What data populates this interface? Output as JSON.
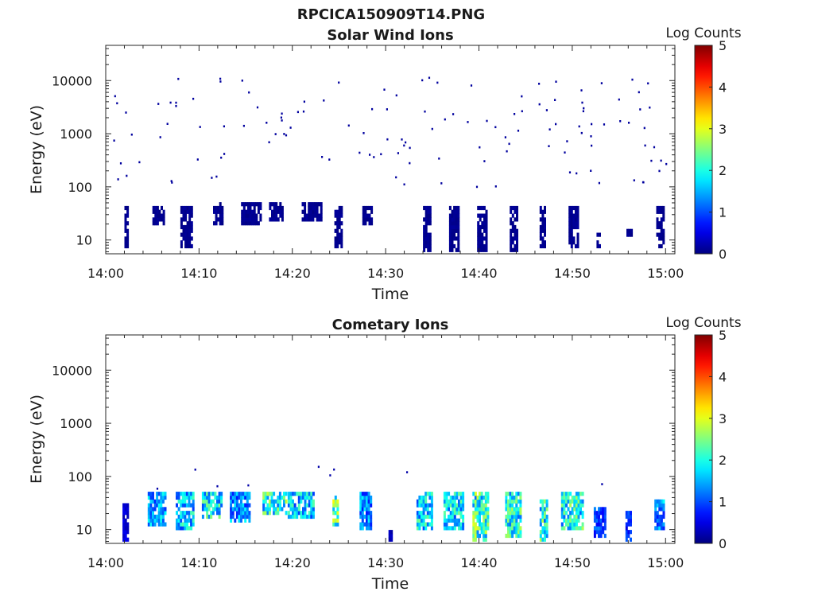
{
  "figure": {
    "suptitle": "RPCICA150909T14.PNG"
  },
  "chart_data": [
    {
      "type": "heatmap",
      "title": "Solar Wind Ions",
      "xlabel": "Time",
      "ylabel": "Energy (eV)",
      "x_ticks": [
        "14:00",
        "14:10",
        "14:20",
        "14:30",
        "14:40",
        "14:50",
        "15:00"
      ],
      "x_range_minutes": [
        0,
        61
      ],
      "y_scale": "log",
      "y_ticks": [
        "10",
        "100",
        "1000",
        "10000"
      ],
      "ylim": [
        5.5,
        46000
      ],
      "colorbar": {
        "label": "Log Counts",
        "ticks": [
          "0",
          "1",
          "2",
          "3",
          "4",
          "5"
        ],
        "range": [
          0,
          5
        ],
        "colormap": "jet"
      },
      "bands": [
        {
          "t0": 2.0,
          "t1": 2.4,
          "e0": 7.5,
          "e1": 40,
          "level": 0.1
        },
        {
          "t0": 5.0,
          "t1": 6.2,
          "e0": 22,
          "e1": 40,
          "level": 0.1
        },
        {
          "t0": 8.0,
          "t1": 9.2,
          "e0": 7.5,
          "e1": 40,
          "level": 0.1
        },
        {
          "t0": 11.5,
          "t1": 12.5,
          "e0": 22,
          "e1": 45,
          "level": 0.1
        },
        {
          "t0": 14.5,
          "t1": 16.5,
          "e0": 22,
          "e1": 45,
          "level": 0.1
        },
        {
          "t0": 17.5,
          "t1": 19.0,
          "e0": 25,
          "e1": 50,
          "level": 0.1
        },
        {
          "t0": 21.0,
          "t1": 23.0,
          "e0": 25,
          "e1": 45,
          "level": 0.1
        },
        {
          "t0": 24.5,
          "t1": 25.3,
          "e0": 8,
          "e1": 40,
          "level": 0.1
        },
        {
          "t0": 27.5,
          "t1": 28.5,
          "e0": 20,
          "e1": 40,
          "level": 0.1
        },
        {
          "t0": 34.0,
          "t1": 34.8,
          "e0": 7,
          "e1": 40,
          "level": 0.1
        },
        {
          "t0": 36.8,
          "t1": 37.8,
          "e0": 7,
          "e1": 40,
          "level": 0.1
        },
        {
          "t0": 39.8,
          "t1": 40.8,
          "e0": 6,
          "e1": 40,
          "level": 0.1
        },
        {
          "t0": 43.3,
          "t1": 44.0,
          "e0": 6,
          "e1": 40,
          "level": 0.1
        },
        {
          "t0": 46.5,
          "t1": 47.0,
          "e0": 8,
          "e1": 40,
          "level": 0.1
        },
        {
          "t0": 49.6,
          "t1": 50.6,
          "e0": 8,
          "e1": 40,
          "level": 0.1
        },
        {
          "t0": 52.6,
          "t1": 52.9,
          "e0": 8,
          "e1": 12,
          "level": 0.1
        },
        {
          "t0": 55.8,
          "t1": 56.3,
          "e0": 12,
          "e1": 15,
          "level": 0.1
        },
        {
          "t0": 59.0,
          "t1": 59.8,
          "e0": 8,
          "e1": 40,
          "level": 0.1
        }
      ],
      "scatter_rate": 2.2,
      "scatter_energy_range": [
        100,
        12000
      ],
      "scatter_level": 0.15
    },
    {
      "type": "heatmap",
      "title": "Cometary Ions",
      "xlabel": "Time",
      "ylabel": "Energy (eV)",
      "x_ticks": [
        "14:00",
        "14:10",
        "14:20",
        "14:30",
        "14:40",
        "14:50",
        "15:00"
      ],
      "x_range_minutes": [
        0,
        61
      ],
      "y_scale": "log",
      "y_ticks": [
        "10",
        "100",
        "1000",
        "10000"
      ],
      "ylim": [
        5.5,
        46000
      ],
      "colorbar": {
        "label": "Log Counts",
        "ticks": [
          "0",
          "1",
          "2",
          "3",
          "4",
          "5"
        ],
        "range": [
          0,
          5
        ],
        "colormap": "jet"
      },
      "bands": [
        {
          "t0": 1.8,
          "t1": 2.3,
          "e0": 7,
          "e1": 30,
          "level": 0.4
        },
        {
          "t0": 4.5,
          "t1": 6.3,
          "e0": 12,
          "e1": 60,
          "level": 1.4
        },
        {
          "t0": 7.5,
          "t1": 9.3,
          "e0": 10,
          "e1": 45,
          "level": 1.6
        },
        {
          "t0": 10.3,
          "t1": 12.3,
          "e0": 18,
          "e1": 65,
          "level": 1.8
        },
        {
          "t0": 13.3,
          "t1": 15.3,
          "e0": 14,
          "e1": 45,
          "level": 1.3
        },
        {
          "t0": 16.8,
          "t1": 19.3,
          "e0": 22,
          "e1": 50,
          "level": 2.0
        },
        {
          "t0": 19.5,
          "t1": 22.3,
          "e0": 18,
          "e1": 95,
          "level": 1.6
        },
        {
          "t0": 24.3,
          "t1": 24.8,
          "e0": 12,
          "e1": 40,
          "level": 2.2
        },
        {
          "t0": 27.2,
          "t1": 28.5,
          "e0": 10,
          "e1": 45,
          "level": 1.3
        },
        {
          "t0": 30.3,
          "t1": 30.6,
          "e0": 6,
          "e1": 9,
          "level": 0.3
        },
        {
          "t0": 33.3,
          "t1": 35.0,
          "e0": 10,
          "e1": 45,
          "level": 1.7
        },
        {
          "t0": 36.2,
          "t1": 38.2,
          "e0": 10,
          "e1": 50,
          "level": 1.7
        },
        {
          "t0": 39.3,
          "t1": 41.0,
          "e0": 6,
          "e1": 45,
          "level": 2.1
        },
        {
          "t0": 42.8,
          "t1": 44.5,
          "e0": 8,
          "e1": 50,
          "level": 1.9
        },
        {
          "t0": 46.5,
          "t1": 47.2,
          "e0": 6,
          "e1": 35,
          "level": 2.0
        },
        {
          "t0": 48.8,
          "t1": 51.0,
          "e0": 10,
          "e1": 45,
          "level": 1.9
        },
        {
          "t0": 52.3,
          "t1": 53.5,
          "e0": 8,
          "e1": 25,
          "level": 0.9
        },
        {
          "t0": 55.7,
          "t1": 56.2,
          "e0": 6,
          "e1": 20,
          "level": 0.8
        },
        {
          "t0": 58.8,
          "t1": 59.8,
          "e0": 10,
          "e1": 35,
          "level": 1.3
        }
      ],
      "scatter_rate": 0.15,
      "scatter_energy_range": [
        60,
        160
      ],
      "scatter_level": 0.2
    }
  ]
}
